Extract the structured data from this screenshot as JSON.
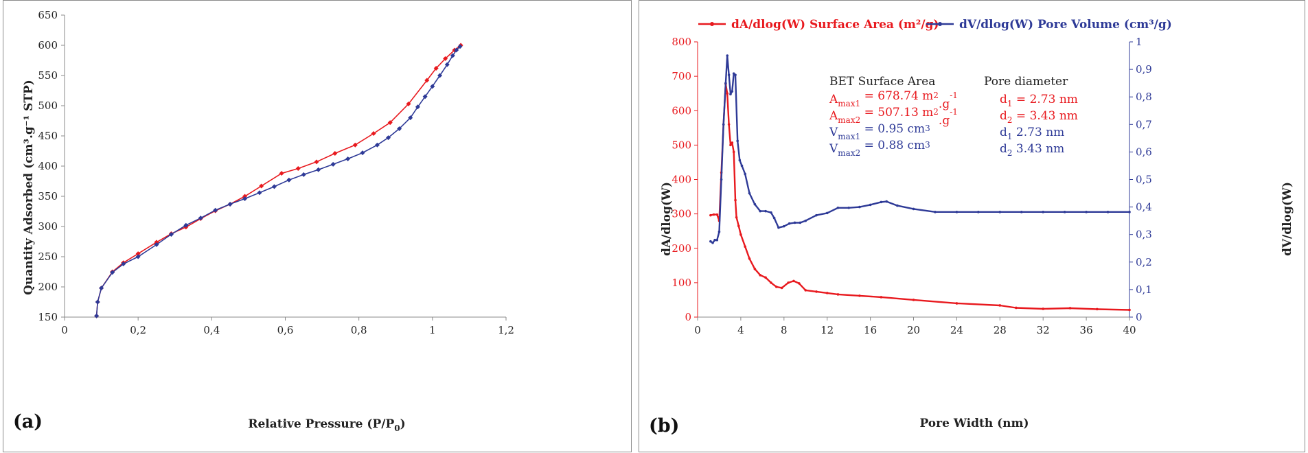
{
  "chart_data": [
    {
      "panel_label": "(a)",
      "type": "line",
      "xlabel": "Relative Pressure (P/P",
      "xlabel_sub": "0",
      "xlabel_end": ")",
      "ylabel": "Quantity Adsorbed (cm³.g⁻¹ STP)",
      "xlim": [
        0,
        1.2
      ],
      "ylim": [
        150,
        650
      ],
      "xticks": [
        "0",
        "0,2",
        "0,4",
        "0,6",
        "0,8",
        "1",
        "1,2"
      ],
      "yticks": [
        "150",
        "200",
        "250",
        "300",
        "350",
        "400",
        "450",
        "500",
        "550",
        "600",
        "650"
      ],
      "grid": false,
      "series": [
        {
          "color": "#e8191e",
          "x": [
            0.087,
            0.09,
            0.1,
            0.13,
            0.16,
            0.2,
            0.25,
            0.29,
            0.33,
            0.37,
            0.41,
            0.45,
            0.49,
            0.535,
            0.59,
            0.635,
            0.685,
            0.735,
            0.79,
            0.84,
            0.885,
            0.935,
            0.985,
            1.01,
            1.035,
            1.06,
            1.077
          ],
          "y": [
            152,
            175,
            198,
            225,
            240,
            255,
            274,
            288,
            299,
            313,
            326,
            337,
            350,
            367,
            388,
            396,
            407,
            421,
            435,
            454,
            472,
            503,
            542,
            562,
            578,
            592,
            600
          ]
        },
        {
          "color": "#2e3a97",
          "x": [
            0.087,
            0.09,
            0.1,
            0.13,
            0.16,
            0.2,
            0.25,
            0.29,
            0.33,
            0.37,
            0.41,
            0.45,
            0.49,
            0.53,
            0.57,
            0.61,
            0.65,
            0.69,
            0.73,
            0.77,
            0.81,
            0.85,
            0.88,
            0.91,
            0.94,
            0.96,
            0.98,
            1.0,
            1.02,
            1.04,
            1.055,
            1.065,
            1.075
          ],
          "y": [
            152,
            175,
            198,
            224,
            238,
            250,
            270,
            287,
            302,
            314,
            327,
            337,
            346,
            356,
            366,
            377,
            386,
            394,
            403,
            412,
            422,
            435,
            447,
            462,
            480,
            498,
            515,
            532,
            550,
            568,
            583,
            592,
            598
          ]
        }
      ]
    },
    {
      "panel_label": "(b)",
      "type": "line",
      "xlabel": "Pore Width (nm)",
      "ylabel_left": "dA/dlog(W)",
      "ylabel_right": "dV/dlog(W)",
      "xlim": [
        0,
        40
      ],
      "ylim_left": [
        0,
        800
      ],
      "ylim_right": [
        0,
        1
      ],
      "xticks": [
        "0",
        "4",
        "8",
        "12",
        "16",
        "20",
        "24",
        "28",
        "32",
        "36",
        "40"
      ],
      "yticks_left": [
        "0",
        "100",
        "200",
        "300",
        "400",
        "500",
        "600",
        "700",
        "800"
      ],
      "yticks_right": [
        "0",
        "0,1",
        "0,2",
        "0,3",
        "0,4",
        "0,5",
        "0,6",
        "0,7",
        "0,8",
        "0,9",
        "1"
      ],
      "grid": false,
      "legend_position": "top",
      "series": [
        {
          "name": "dA/dlog(W) Surface Area (m²/g)",
          "color": "#e8191e",
          "axis": "left",
          "x": [
            1.2,
            1.5,
            1.8,
            2.0,
            2.2,
            2.4,
            2.6,
            2.75,
            2.9,
            3.05,
            3.2,
            3.35,
            3.5,
            3.6,
            3.8,
            4.0,
            4.4,
            4.8,
            5.3,
            5.8,
            6.3,
            6.8,
            7.3,
            7.8,
            8.4,
            8.9,
            9.4,
            10.0,
            11.0,
            12.0,
            13.0,
            15.0,
            17.0,
            20.0,
            24.0,
            28.0,
            29.5,
            32.0,
            34.5,
            37.0,
            40.0
          ],
          "y": [
            296,
            298,
            298,
            280,
            420,
            560,
            678,
            650,
            560,
            500,
            507,
            480,
            340,
            290,
            265,
            240,
            205,
            170,
            140,
            122,
            115,
            100,
            88,
            85,
            100,
            105,
            98,
            78,
            74,
            70,
            66,
            62,
            58,
            50,
            40,
            34,
            27,
            24,
            26,
            23,
            21
          ]
        },
        {
          "name": "dV/dlog(W) Pore Volume (cm³/g)",
          "color": "#2e3a97",
          "axis": "right",
          "x": [
            1.2,
            1.4,
            1.6,
            1.8,
            2.0,
            2.2,
            2.4,
            2.6,
            2.75,
            2.9,
            3.05,
            3.2,
            3.35,
            3.5,
            3.7,
            3.9,
            4.1,
            4.4,
            4.8,
            5.3,
            5.8,
            6.3,
            6.8,
            7.1,
            7.5,
            8.0,
            8.5,
            9.0,
            9.5,
            10.0,
            11.0,
            12.0,
            13.0,
            14.0,
            15.0,
            16.0,
            17.0,
            17.5,
            18.5,
            20.0,
            22.0,
            24.0,
            26.0,
            28.0,
            30.0,
            32.0,
            34.0,
            36.0,
            38.0,
            40.0
          ],
          "y": [
            0.275,
            0.27,
            0.28,
            0.28,
            0.31,
            0.5,
            0.7,
            0.85,
            0.95,
            0.88,
            0.81,
            0.82,
            0.885,
            0.88,
            0.64,
            0.57,
            0.55,
            0.52,
            0.45,
            0.41,
            0.385,
            0.385,
            0.38,
            0.36,
            0.325,
            0.33,
            0.34,
            0.343,
            0.343,
            0.35,
            0.37,
            0.378,
            0.397,
            0.397,
            0.4,
            0.408,
            0.418,
            0.42,
            0.405,
            0.393,
            0.382,
            0.382,
            0.382,
            0.382,
            0.382,
            0.382,
            0.382,
            0.382,
            0.382,
            0.382
          ]
        }
      ],
      "annotations": {
        "bet_header": "BET Surface Area",
        "pore_header": "Pore diameter",
        "rows": [
          {
            "sym": "A",
            "sub": "max1",
            "val": " = 678.74 m",
            "sup1": "2",
            "mid": ".g",
            "sup2": "-1",
            "d": "d",
            "dsub": "1",
            "dval": " = 2.73 nm",
            "color": "#e8191e"
          },
          {
            "sym": "A",
            "sub": "max2",
            "val": " = 507.13 m",
            "sup1": "2",
            "mid": ".g",
            "sup2": "-1",
            "d": "d",
            "dsub": "2",
            "dval": " = 3.43 nm",
            "color": "#e8191e"
          },
          {
            "sym": "V",
            "sub": "max1",
            "val": " = 0.95 cm",
            "sup1": "3",
            "mid": "",
            "sup2": "",
            "d": "d",
            "dsub": "1",
            "dval": "  2.73 nm",
            "color": "#2e3a97"
          },
          {
            "sym": "V",
            "sub": "max2",
            "val": " = 0.88 cm",
            "sup1": "3",
            "mid": "",
            "sup2": "",
            "d": "d",
            "dsub": "2",
            "dval": "  3.43 nm",
            "color": "#2e3a97"
          }
        ]
      }
    }
  ]
}
